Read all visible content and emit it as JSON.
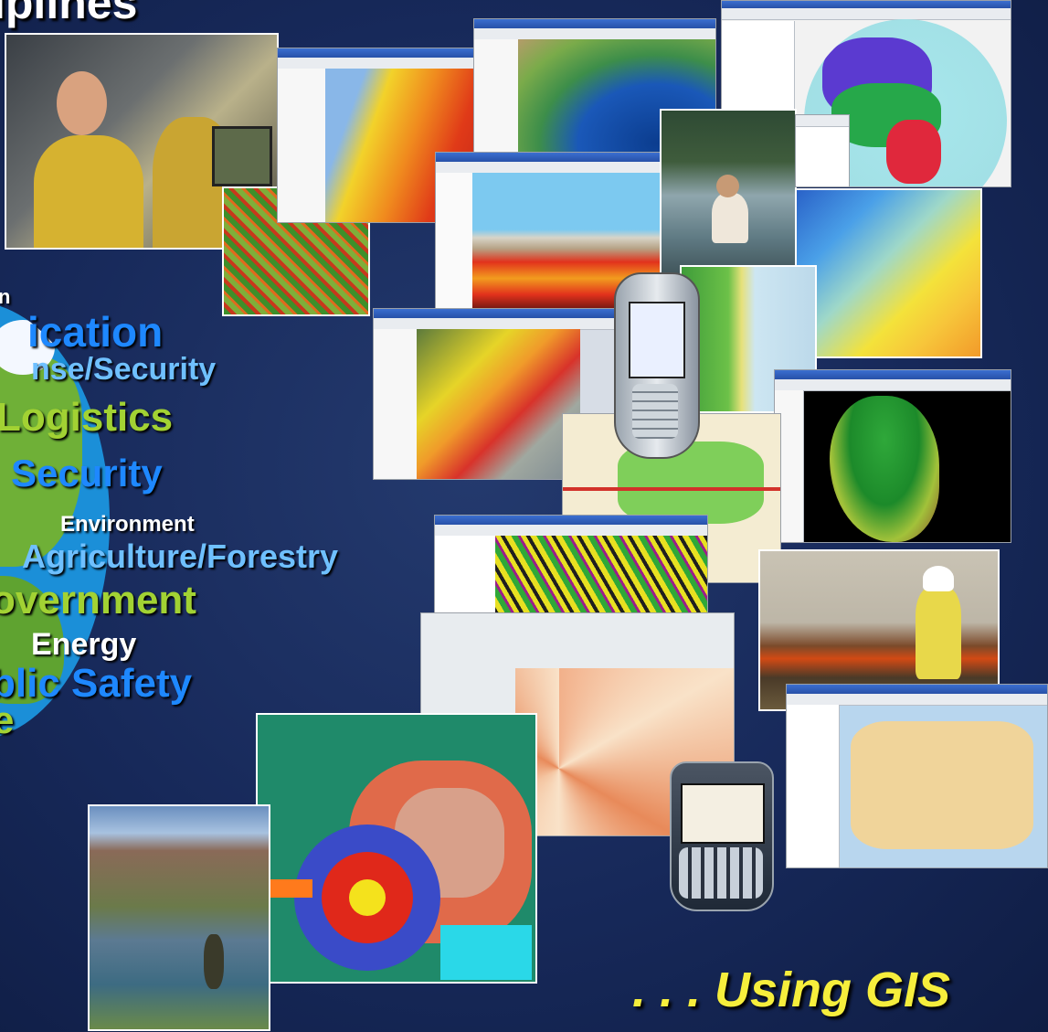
{
  "slide": {
    "title": "iplines",
    "tagline": ". . . Using GIS"
  },
  "disciplines": [
    {
      "text": "n",
      "color": "#ffffff"
    },
    {
      "text": "ication",
      "color": "#1e88ff"
    },
    {
      "text": "nse/Security",
      "color": "#6fc0ff"
    },
    {
      "text": "Logistics",
      "color": "#a2d233"
    },
    {
      "text": "Security",
      "color": "#1e88ff"
    },
    {
      "text": "Environment",
      "color": "#ffffff"
    },
    {
      "text": "Agriculture/Forestry",
      "color": "#6fc0ff"
    },
    {
      "text": "overnment",
      "color": "#a2d233"
    },
    {
      "text": "Energy",
      "color": "#ffffff"
    },
    {
      "text": "blic Safety",
      "color": "#1e88ff"
    },
    {
      "text": "e",
      "color": "#a2d233"
    }
  ],
  "colors": {
    "background": "#17295a",
    "tagline": "#f6ee3c"
  }
}
